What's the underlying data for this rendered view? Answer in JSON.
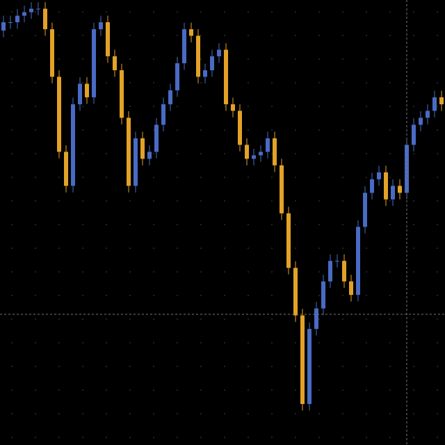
{
  "chart_data": {
    "type": "candlestick",
    "up_color": "#4a6bc4",
    "down_color": "#e3a227",
    "ylim": [
      0,
      102
    ],
    "open": [
      95,
      96.9,
      96.9,
      98.4,
      99.2,
      100,
      100,
      95.3,
      84.4,
      67.2,
      59.4,
      78.1,
      82.8,
      79.7,
      95.3,
      96.9,
      89.1,
      85.9,
      75,
      59.4,
      70.3,
      65.6,
      67.2,
      73.4,
      78.1,
      81.3,
      87.5,
      95.3,
      93.8,
      84.4,
      85.9,
      89.1,
      90.6,
      78.1,
      76.6,
      68.8,
      65.6,
      66.4,
      67.2,
      70.3,
      64.1,
      53.1,
      40.6,
      29.7,
      9.4,
      26.6,
      31.3,
      37.5,
      42.2,
      42.2,
      37.5,
      34.4,
      50,
      57.8,
      60.9,
      62.5,
      56.3,
      59.4,
      57.8,
      68.8,
      73.4,
      75,
      76.6,
      79.7
    ],
    "high": [
      98.4,
      98.4,
      99.9,
      100.7,
      101.5,
      101.5,
      101.5,
      96.8,
      85.9,
      68.7,
      79.6,
      84.3,
      84.3,
      96.8,
      98.4,
      98.4,
      90.6,
      87.4,
      76.5,
      71.8,
      71.8,
      68.7,
      74.9,
      79.6,
      82.8,
      89,
      96.8,
      96.8,
      95.3,
      87.4,
      90.6,
      92.1,
      92.1,
      79.6,
      78.1,
      70.3,
      67.9,
      68.7,
      71.8,
      71.8,
      65.6,
      54.6,
      42.1,
      31.2,
      28.1,
      32.8,
      39,
      43.7,
      43.7,
      43.7,
      39,
      51.5,
      59.3,
      62.4,
      64,
      64,
      60.9,
      60.9,
      70.3,
      74.9,
      76.5,
      78.1,
      81.2,
      81.2
    ],
    "low": [
      93.5,
      95.4,
      95.4,
      96.9,
      97.7,
      98.5,
      93.8,
      82.9,
      65.7,
      57.9,
      57.9,
      76.6,
      78.2,
      78.2,
      93.8,
      87.6,
      84.4,
      73.5,
      57.9,
      57.9,
      64.1,
      64.1,
      65.7,
      71.9,
      76.6,
      79.8,
      86,
      92.3,
      82.9,
      82.9,
      84.4,
      87.6,
      76.6,
      75.1,
      67.3,
      64.1,
      64.1,
      64.9,
      65.7,
      62.6,
      51.6,
      39.1,
      28.2,
      7.9,
      7.9,
      25.1,
      29.8,
      36,
      40.7,
      36,
      32.9,
      32.9,
      48.5,
      56.3,
      59.4,
      54.8,
      54.8,
      56.3,
      56.3,
      67.3,
      71.9,
      73.5,
      75.1,
      76.6
    ],
    "close": [
      96.9,
      96.9,
      98.4,
      99.2,
      100,
      100,
      95.3,
      84.4,
      67.2,
      59.4,
      78.1,
      82.8,
      79.7,
      95.3,
      96.9,
      89.1,
      85.9,
      75,
      59.4,
      70.3,
      65.6,
      67.2,
      73.4,
      78.1,
      81.3,
      87.5,
      95.3,
      93.8,
      84.4,
      85.9,
      89.1,
      90.6,
      78.1,
      76.6,
      68.8,
      65.6,
      66.4,
      67.2,
      70.3,
      64.1,
      53.1,
      40.6,
      29.7,
      9.4,
      26.6,
      31.3,
      37.5,
      42.2,
      42.2,
      37.5,
      34.4,
      50,
      57.8,
      60.9,
      62.5,
      56.3,
      59.4,
      57.8,
      68.8,
      73.4,
      75,
      76.6,
      79.7,
      78.1
    ]
  }
}
